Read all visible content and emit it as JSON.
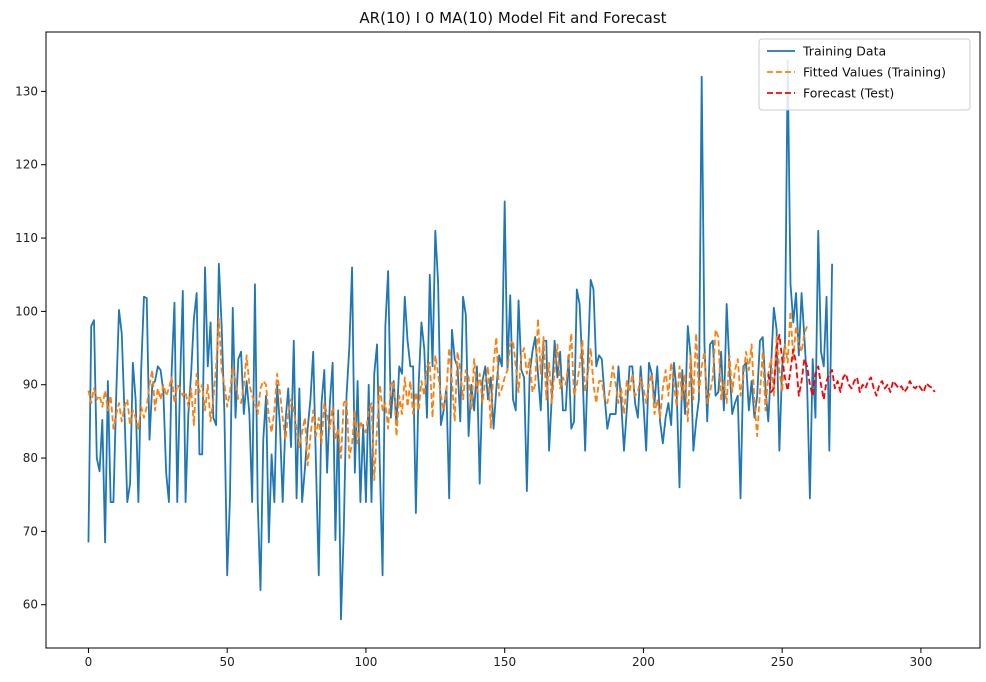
{
  "chart_data": {
    "type": "line",
    "title": "AR(10) I 0 MA(10) Model Fit and Forecast",
    "xlabel": "",
    "ylabel": "",
    "xlim": [
      -15.3,
      321.3
    ],
    "ylim": [
      54.1,
      138.1
    ],
    "xticks": [
      0,
      50,
      100,
      150,
      200,
      250,
      300
    ],
    "yticks": [
      60,
      70,
      80,
      90,
      100,
      110,
      120,
      130
    ],
    "grid": false,
    "legend_position": "top-right",
    "series": [
      {
        "name": "Training Data",
        "color": "#1f77b4",
        "style": "solid",
        "x_start": 0,
        "values": [
          68.5,
          98.0,
          98.8,
          80.0,
          78.2,
          85.2,
          68.5,
          90.5,
          74.0,
          74.0,
          88.5,
          100.2,
          97.0,
          86.0,
          74.0,
          76.5,
          93.0,
          88.0,
          74.0,
          92.0,
          102.0,
          101.8,
          82.5,
          90.0,
          90.5,
          92.5,
          92.0,
          89.0,
          78.0,
          74.0,
          92.0,
          101.2,
          74.0,
          90.0,
          102.8,
          74.0,
          86.0,
          91.5,
          99.0,
          102.5,
          80.5,
          80.5,
          106.0,
          92.5,
          98.5,
          85.5,
          84.5,
          106.5,
          98.0,
          86.0,
          64.0,
          74.5,
          100.5,
          85.5,
          93.5,
          94.5,
          86.0,
          90.5,
          86.0,
          74.0,
          103.7,
          74.0,
          62.0,
          82.5,
          88.5,
          68.5,
          80.5,
          74.0,
          90.0,
          84.5,
          74.0,
          85.0,
          89.5,
          81.5,
          96.0,
          74.5,
          89.5,
          74.0,
          78.5,
          84.0,
          88.0,
          94.5,
          79.0,
          64.0,
          87.5,
          92.0,
          78.0,
          87.5,
          93.0,
          68.8,
          86.5,
          58.0,
          70.0,
          88.5,
          95.0,
          106.0,
          78.0,
          90.5,
          74.0,
          84.5,
          74.0,
          90.0,
          74.0,
          91.5,
          95.5,
          79.0,
          64.0,
          98.0,
          105.5,
          85.5,
          90.5,
          84.5,
          92.5,
          91.5,
          102.0,
          96.0,
          92.5,
          92.5,
          72.5,
          90.0,
          98.5,
          95.0,
          85.5,
          105.0,
          92.5,
          111.0,
          104.0,
          84.5,
          86.5,
          89.5,
          74.5,
          97.5,
          93.5,
          92.5,
          85.0,
          102.0,
          99.5,
          83.0,
          90.0,
          86.5,
          92.5,
          76.5,
          90.5,
          92.5,
          88.0,
          91.0,
          84.0,
          89.5,
          94.0,
          92.5,
          115.0,
          92.0,
          102.2,
          88.0,
          86.5,
          101.5,
          92.0,
          91.0,
          75.5,
          91.5,
          94.5,
          96.5,
          91.5,
          86.5,
          96.0,
          96.0,
          81.0,
          88.5,
          96.0,
          91.0,
          94.5,
          86.5,
          86.5,
          94.0,
          84.0,
          85.0,
          103.0,
          101.0,
          92.5,
          81.0,
          93.5,
          104.3,
          103.0,
          92.5,
          94.0,
          93.5,
          88.5,
          84.0,
          86.0,
          86.0,
          86.0,
          92.5,
          87.5,
          81.0,
          86.5,
          92.5,
          92.5,
          87.5,
          85.5,
          92.5,
          87.5,
          81.0,
          93.0,
          91.5,
          87.5,
          92.5,
          85.0,
          82.0,
          85.5,
          87.5,
          84.5,
          93.0,
          89.0,
          76.0,
          92.0,
          86.0,
          98.0,
          94.0,
          81.0,
          85.0,
          88.0,
          132.0,
          95.5,
          85.0,
          95.5,
          96.0,
          88.5,
          89.0,
          94.5,
          86.5,
          101.0,
          92.5,
          86.0,
          87.5,
          88.5,
          74.5,
          92.5,
          93.0,
          86.5,
          90.5,
          85.5,
          88.5,
          96.0,
          96.5,
          89.5,
          85.0,
          92.5,
          100.5,
          97.5,
          81.0,
          92.5,
          95.5,
          134.2,
          103.8,
          98.5,
          102.5,
          94.0,
          102.5,
          96.5,
          90.0,
          74.5,
          93.5,
          85.5,
          111.0,
          94.5,
          92.5,
          102.0,
          81.0,
          106.5
        ]
      },
      {
        "name": "Fitted Values (Training)",
        "color": "#ff7f0e",
        "style": "dashed",
        "x_start": 0,
        "values": [
          89.2,
          87.5,
          89.5,
          88.0,
          88.5,
          87.0,
          89.2,
          86.5,
          88.5,
          84.0,
          86.0,
          87.5,
          85.0,
          87.0,
          88.0,
          84.5,
          86.5,
          85.5,
          84.0,
          87.0,
          85.5,
          87.0,
          90.0,
          92.0,
          86.5,
          89.5,
          88.0,
          90.0,
          88.5,
          89.5,
          91.0,
          87.5,
          90.0,
          89.5,
          88.5,
          89.0,
          87.0,
          89.5,
          84.5,
          91.5,
          89.0,
          90.0,
          86.5,
          90.0,
          85.0,
          88.0,
          92.5,
          99.0,
          92.0,
          90.0,
          87.0,
          89.0,
          92.5,
          90.5,
          88.0,
          87.5,
          90.0,
          94.0,
          90.0,
          88.5,
          87.5,
          86.0,
          89.5,
          90.5,
          90.0,
          85.5,
          83.5,
          86.5,
          91.5,
          89.0,
          85.5,
          82.5,
          86.0,
          88.0,
          86.5,
          84.0,
          81.5,
          83.5,
          85.5,
          79.0,
          83.0,
          86.5,
          83.0,
          85.5,
          82.0,
          87.5,
          86.0,
          84.0,
          87.0,
          82.5,
          84.0,
          80.0,
          87.5,
          88.0,
          80.0,
          82.0,
          86.5,
          82.0,
          85.0,
          84.0,
          83.5,
          86.5,
          87.5,
          77.0,
          84.0,
          90.0,
          86.5,
          87.5,
          84.0,
          90.0,
          90.5,
          83.0,
          88.5,
          86.0,
          91.0,
          87.0,
          90.5,
          86.0,
          89.0,
          86.5,
          90.5,
          88.5,
          92.5,
          93.0,
          85.5,
          94.0,
          91.5,
          88.5,
          86.5,
          89.0,
          95.0,
          90.5,
          85.0,
          94.5,
          92.0,
          88.0,
          92.0,
          91.0,
          86.5,
          93.5,
          89.0,
          91.5,
          87.5,
          90.5,
          92.5,
          84.0,
          93.0,
          96.5,
          88.5,
          89.5,
          91.0,
          92.0,
          95.5,
          96.0,
          92.5,
          89.0,
          94.0,
          95.0,
          91.5,
          93.5,
          89.0,
          90.0,
          99.0,
          91.5,
          96.5,
          88.0,
          93.0,
          87.5,
          92.0,
          95.5,
          89.5,
          91.0,
          90.0,
          93.0,
          97.0,
          88.5,
          90.0,
          92.5,
          96.0,
          89.0,
          91.5,
          95.0,
          90.0,
          87.5,
          90.5,
          90.5,
          88.0,
          87.5,
          89.5,
          92.5,
          90.0,
          87.5,
          89.5,
          86.0,
          90.5,
          89.0,
          91.5,
          88.5,
          89.0,
          91.0,
          89.5,
          87.5,
          90.0,
          91.5,
          86.0,
          88.0,
          85.5,
          89.5,
          92.0,
          88.5,
          93.0,
          90.0,
          87.0,
          92.5,
          88.0,
          91.5,
          85.0,
          94.0,
          88.0,
          97.0,
          89.0,
          92.5,
          94.5,
          87.5,
          89.0,
          91.0,
          97.5,
          96.5,
          88.0,
          90.5,
          87.5,
          94.0,
          89.0,
          92.0,
          93.5,
          88.5,
          91.0,
          94.5,
          92.0,
          95.5,
          87.5,
          83.0,
          89.0,
          94.5,
          86.5,
          91.5,
          93.5,
          88.5,
          96.5,
          92.0,
          89.0,
          95.5,
          93.0,
          100.0,
          93.5,
          98.0,
          95.5,
          94.5,
          97.0,
          98.0
        ]
      },
      {
        "name": "Forecast (Test)",
        "color": "#ff0000",
        "style": "dashed",
        "x_start": 245,
        "values": [
          91.5,
          89.0,
          89.5,
          95.0,
          96.8,
          93.5,
          91.0,
          89.2,
          92.0,
          94.8,
          93.0,
          88.5,
          90.5,
          93.5,
          92.5,
          90.0,
          88.5,
          91.5,
          92.5,
          90.0,
          88.0,
          90.5,
          91.5,
          92.0,
          89.5,
          90.5,
          89.0,
          91.0,
          91.5,
          90.0,
          89.5,
          90.5,
          91.0,
          89.0,
          90.0,
          89.5,
          90.5,
          91.0,
          89.5,
          88.5,
          90.0,
          90.5,
          89.5,
          90.0,
          89.0,
          90.5,
          90.0,
          89.5,
          89.8,
          89.0,
          89.5,
          90.5,
          89.8,
          89.5,
          90.0,
          89.5,
          89.0,
          90.2,
          89.8,
          89.6,
          89.0
        ]
      }
    ]
  }
}
